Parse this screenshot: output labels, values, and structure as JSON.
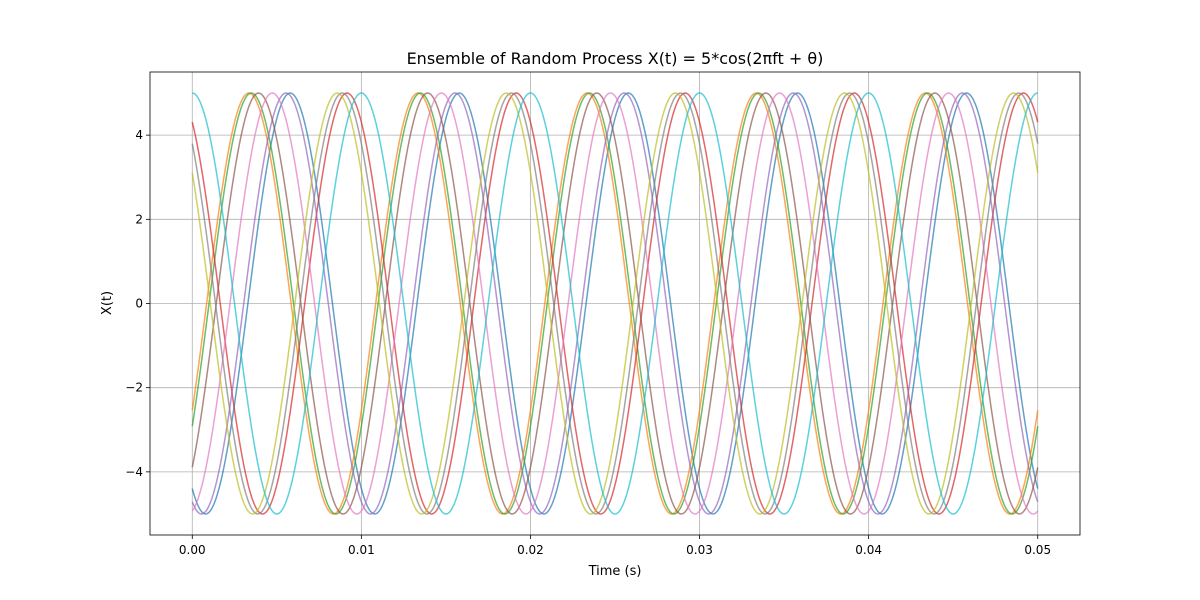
{
  "chart_data": {
    "type": "line",
    "title": "Ensemble of Random Process X(t) = 5*cos(2πft + θ)",
    "xlabel": "Time (s)",
    "ylabel": "X(t)",
    "xlim": [
      -0.0025,
      0.0525
    ],
    "ylim": [
      -5.5,
      5.5
    ],
    "xticks": [
      0.0,
      0.01,
      0.02,
      0.03,
      0.04,
      0.05
    ],
    "xtick_labels": [
      "0.00",
      "0.01",
      "0.02",
      "0.03",
      "0.04",
      "0.05"
    ],
    "yticks": [
      -4,
      -2,
      0,
      2,
      4
    ],
    "ytick_labels": [
      "−4",
      "−2",
      "0",
      "2",
      "4"
    ],
    "grid": true,
    "amplitude": 5,
    "frequency_hz": 100,
    "t_range": [
      0.0,
      0.05
    ],
    "series": [
      {
        "theta": 2.645,
        "color": "#1f77b4"
      },
      {
        "theta": 4.18,
        "color": "#ff7f0e"
      },
      {
        "theta": 4.09,
        "color": "#2ca02c"
      },
      {
        "theta": 0.532,
        "color": "#d62728"
      },
      {
        "theta": 2.8,
        "color": "#9467bd"
      },
      {
        "theta": 3.82,
        "color": "#8c564b"
      },
      {
        "theta": 3.31,
        "color": "#e377c2"
      },
      {
        "theta": 0.708,
        "color": "#7f7f7f"
      },
      {
        "theta": 0.9,
        "color": "#bcbd22"
      },
      {
        "theta": 0.0,
        "color": "#17becf"
      }
    ]
  }
}
